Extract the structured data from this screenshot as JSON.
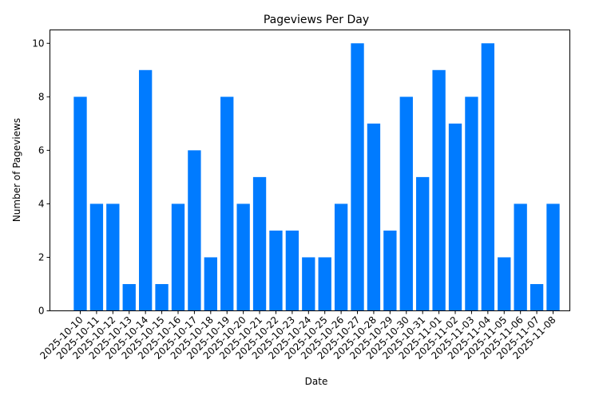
{
  "chart_data": {
    "type": "bar",
    "title": "Pageviews Per Day",
    "xlabel": "Date",
    "ylabel": "Number of Pageviews",
    "ylim": [
      0,
      10.5
    ],
    "yticks": [
      0,
      2,
      4,
      6,
      8,
      10
    ],
    "grid": false,
    "legend": null,
    "bar_color": "#007bff",
    "categories": [
      "2025-10-10",
      "2025-10-11",
      "2025-10-12",
      "2025-10-13",
      "2025-10-14",
      "2025-10-15",
      "2025-10-16",
      "2025-10-17",
      "2025-10-18",
      "2025-10-19",
      "2025-10-20",
      "2025-10-21",
      "2025-10-22",
      "2025-10-23",
      "2025-10-24",
      "2025-10-25",
      "2025-10-26",
      "2025-10-27",
      "2025-10-28",
      "2025-10-29",
      "2025-10-30",
      "2025-10-31",
      "2025-11-01",
      "2025-11-02",
      "2025-11-03",
      "2025-11-04",
      "2025-11-05",
      "2025-11-06",
      "2025-11-07",
      "2025-11-08"
    ],
    "values": [
      8,
      4,
      4,
      1,
      9,
      1,
      4,
      6,
      2,
      8,
      4,
      5,
      3,
      3,
      2,
      2,
      4,
      10,
      7,
      3,
      8,
      5,
      9,
      7,
      8,
      10,
      2,
      4,
      1,
      4
    ]
  }
}
